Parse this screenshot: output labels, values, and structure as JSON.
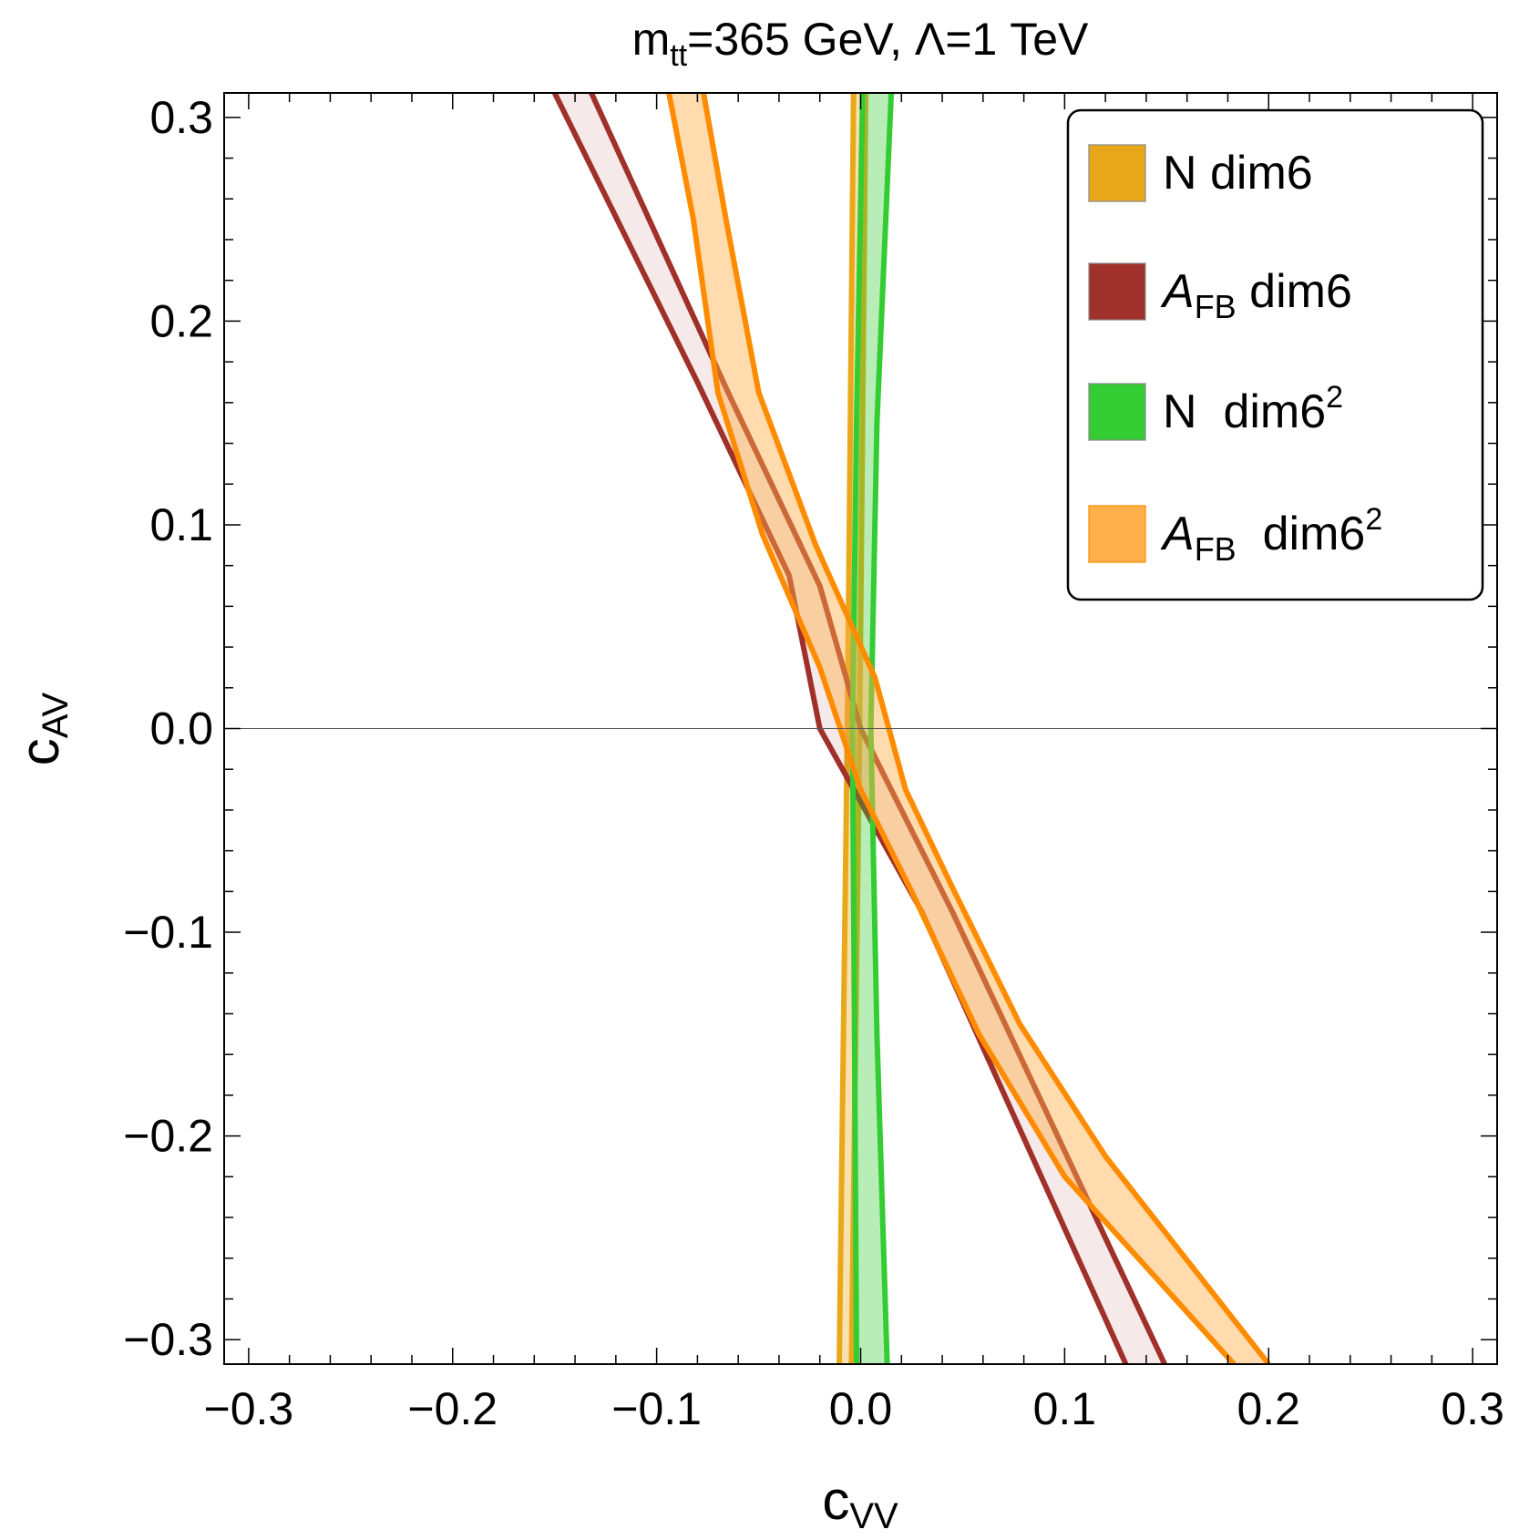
{
  "chart_data": {
    "type": "region",
    "title": {
      "main": "m",
      "main_sub": "tt",
      "rest": "=365 GeV, Λ=1 TeV"
    },
    "xlabel": {
      "main": "c",
      "sub": "VV"
    },
    "ylabel": {
      "main": "c",
      "sub": "AV"
    },
    "xlim": [
      -0.312,
      0.312
    ],
    "ylim": [
      -0.312,
      0.312
    ],
    "xticks": [
      -0.3,
      -0.2,
      -0.1,
      0.0,
      0.1,
      0.2,
      0.3
    ],
    "yticks": [
      -0.3,
      -0.2,
      -0.1,
      0.0,
      0.1,
      0.2,
      0.3
    ],
    "xtick_labels": [
      "−0.3",
      "−0.2",
      "−0.1",
      "0.0",
      "0.1",
      "0.2",
      "0.3"
    ],
    "ytick_labels": [
      "−0.3",
      "−0.2",
      "−0.1",
      "0.0",
      "0.1",
      "0.2",
      "0.3"
    ],
    "legend_position": "top-right",
    "series": [
      {
        "name": "N dim6",
        "label_main": "N dim6",
        "label_sub": "",
        "label_tail": "",
        "label_sup": "",
        "label_italic": false,
        "edge": "#E8A81A",
        "fill": "#E8A81A",
        "fill_opacity": 0.35,
        "bounds": [
          [
            [
              -0.0105,
              -0.312
            ],
            [
              -0.0065,
              0.0
            ],
            [
              -0.0035,
              0.312
            ]
          ],
          [
            [
              -0.0045,
              -0.312
            ],
            [
              -0.0005,
              0.0
            ],
            [
              0.0025,
              0.312
            ]
          ]
        ]
      },
      {
        "name": "A_FB dim6",
        "label_main": "A",
        "label_sub": "FB",
        "label_tail": " dim6",
        "label_sup": "",
        "label_italic": true,
        "edge": "#A0302A",
        "fill": "#A0302A",
        "fill_opacity": 0.1,
        "bounds": [
          [
            [
              -0.15,
              0.312
            ],
            [
              -0.08,
              0.17
            ],
            [
              -0.035,
              0.075
            ],
            [
              -0.02,
              0.0
            ],
            [
              0.03,
              -0.09
            ],
            [
              0.13,
              -0.312
            ]
          ],
          [
            [
              -0.132,
              0.312
            ],
            [
              -0.065,
              0.165
            ],
            [
              -0.02,
              0.07
            ],
            [
              0.0,
              0.0
            ],
            [
              0.045,
              -0.09
            ],
            [
              0.149,
              -0.312
            ]
          ]
        ]
      },
      {
        "name": "N dim6^2",
        "label_main": "N  dim6",
        "label_sub": "",
        "label_tail": "",
        "label_sup": "2",
        "label_italic": false,
        "edge": "#33CC33",
        "fill": "#33CC33",
        "fill_opacity": 0.35,
        "bounds": [
          [
            [
              -0.002,
              -0.312
            ],
            [
              -0.003,
              -0.15
            ],
            [
              -0.004,
              0.0
            ],
            [
              -0.002,
              0.15
            ],
            [
              0.001,
              0.312
            ]
          ],
          [
            [
              0.013,
              -0.312
            ],
            [
              0.008,
              -0.15
            ],
            [
              0.005,
              0.0
            ],
            [
              0.008,
              0.15
            ],
            [
              0.015,
              0.312
            ]
          ]
        ]
      },
      {
        "name": "A_FB dim6^2",
        "label_main": "A",
        "label_sub": "FB",
        "label_tail": "  dim6",
        "label_sup": "2",
        "label_italic": true,
        "edge": "#FF8C00",
        "fill": "#FFB04A",
        "fill_opacity": 0.45,
        "bounds": [
          [
            [
              -0.094,
              0.312
            ],
            [
              -0.082,
              0.25
            ],
            [
              -0.07,
              0.165
            ],
            [
              -0.048,
              0.095
            ],
            [
              -0.02,
              0.03
            ],
            [
              0.0,
              -0.03
            ],
            [
              0.025,
              -0.08
            ],
            [
              0.058,
              -0.15
            ],
            [
              0.1,
              -0.22
            ],
            [
              0.183,
              -0.312
            ]
          ],
          [
            [
              -0.077,
              0.312
            ],
            [
              -0.066,
              0.25
            ],
            [
              -0.05,
              0.165
            ],
            [
              -0.022,
              0.09
            ],
            [
              0.007,
              0.025
            ],
            [
              0.022,
              -0.03
            ],
            [
              0.045,
              -0.078
            ],
            [
              0.078,
              -0.145
            ],
            [
              0.12,
              -0.21
            ],
            [
              0.2,
              -0.312
            ]
          ]
        ]
      }
    ]
  }
}
